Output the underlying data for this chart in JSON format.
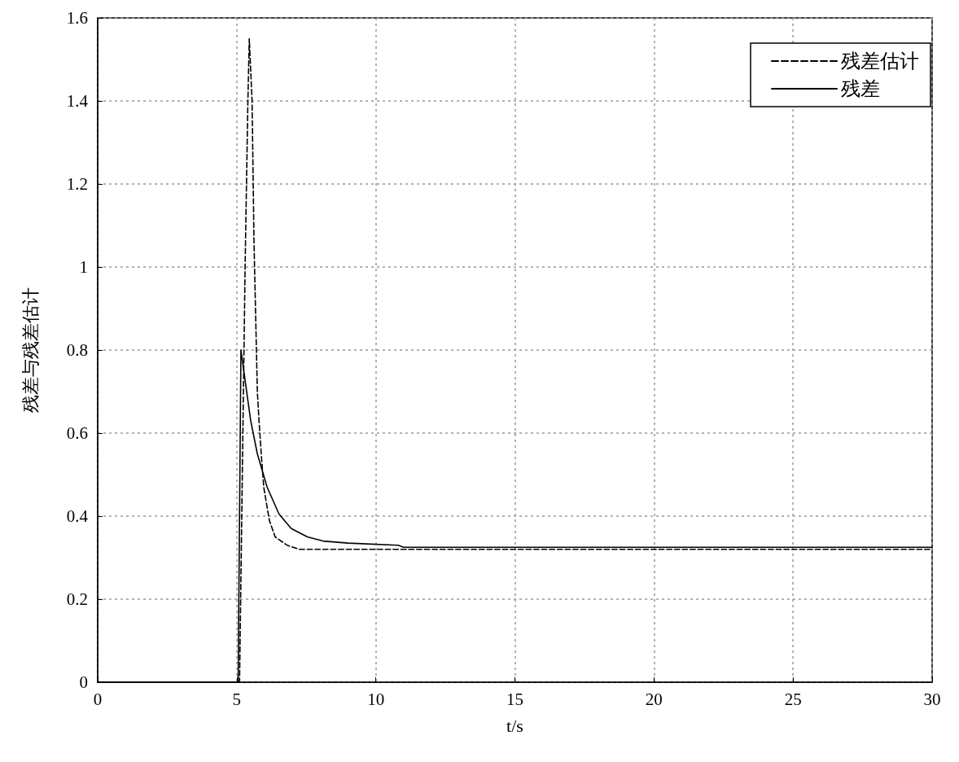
{
  "chart_data": {
    "type": "line",
    "xlabel": "t/s",
    "ylabel": "残差与残差估计",
    "xlim": [
      0,
      30
    ],
    "xticks": [
      0,
      5,
      10,
      15,
      20,
      25,
      30
    ],
    "ylim": [
      0,
      1.6
    ],
    "yticks": [
      0,
      0.2,
      0.4,
      0.6,
      0.8,
      1,
      1.2,
      1.4,
      1.6
    ],
    "grid": true,
    "legend": "top right",
    "marker": "none",
    "series": [
      {
        "name": "残差估计",
        "color": "#000000",
        "line_style": "dashed",
        "x": [
          0,
          5.1,
          5.2,
          5.3,
          5.4,
          5.45,
          5.55,
          5.62,
          5.74,
          5.8,
          5.88,
          5.97,
          6.17,
          6.38,
          6.81,
          7.25,
          10,
          20,
          30
        ],
        "values": [
          0,
          0,
          0.5,
          1.0,
          1.4,
          1.55,
          1.4,
          1.06,
          0.7,
          0.63,
          0.55,
          0.47,
          0.39,
          0.35,
          0.33,
          0.32,
          0.32,
          0.32,
          0.32
        ]
      },
      {
        "name": "残差",
        "color": "#000000",
        "line_style": "solid",
        "x": [
          0,
          5.05,
          5.15,
          5.5,
          5.74,
          6.09,
          6.52,
          6.96,
          7.54,
          8.1,
          9,
          10.8,
          11,
          20,
          30
        ],
        "values": [
          0,
          0,
          0.8,
          0.63,
          0.55,
          0.47,
          0.405,
          0.37,
          0.35,
          0.34,
          0.335,
          0.33,
          0.325,
          0.325,
          0.325
        ]
      }
    ]
  }
}
